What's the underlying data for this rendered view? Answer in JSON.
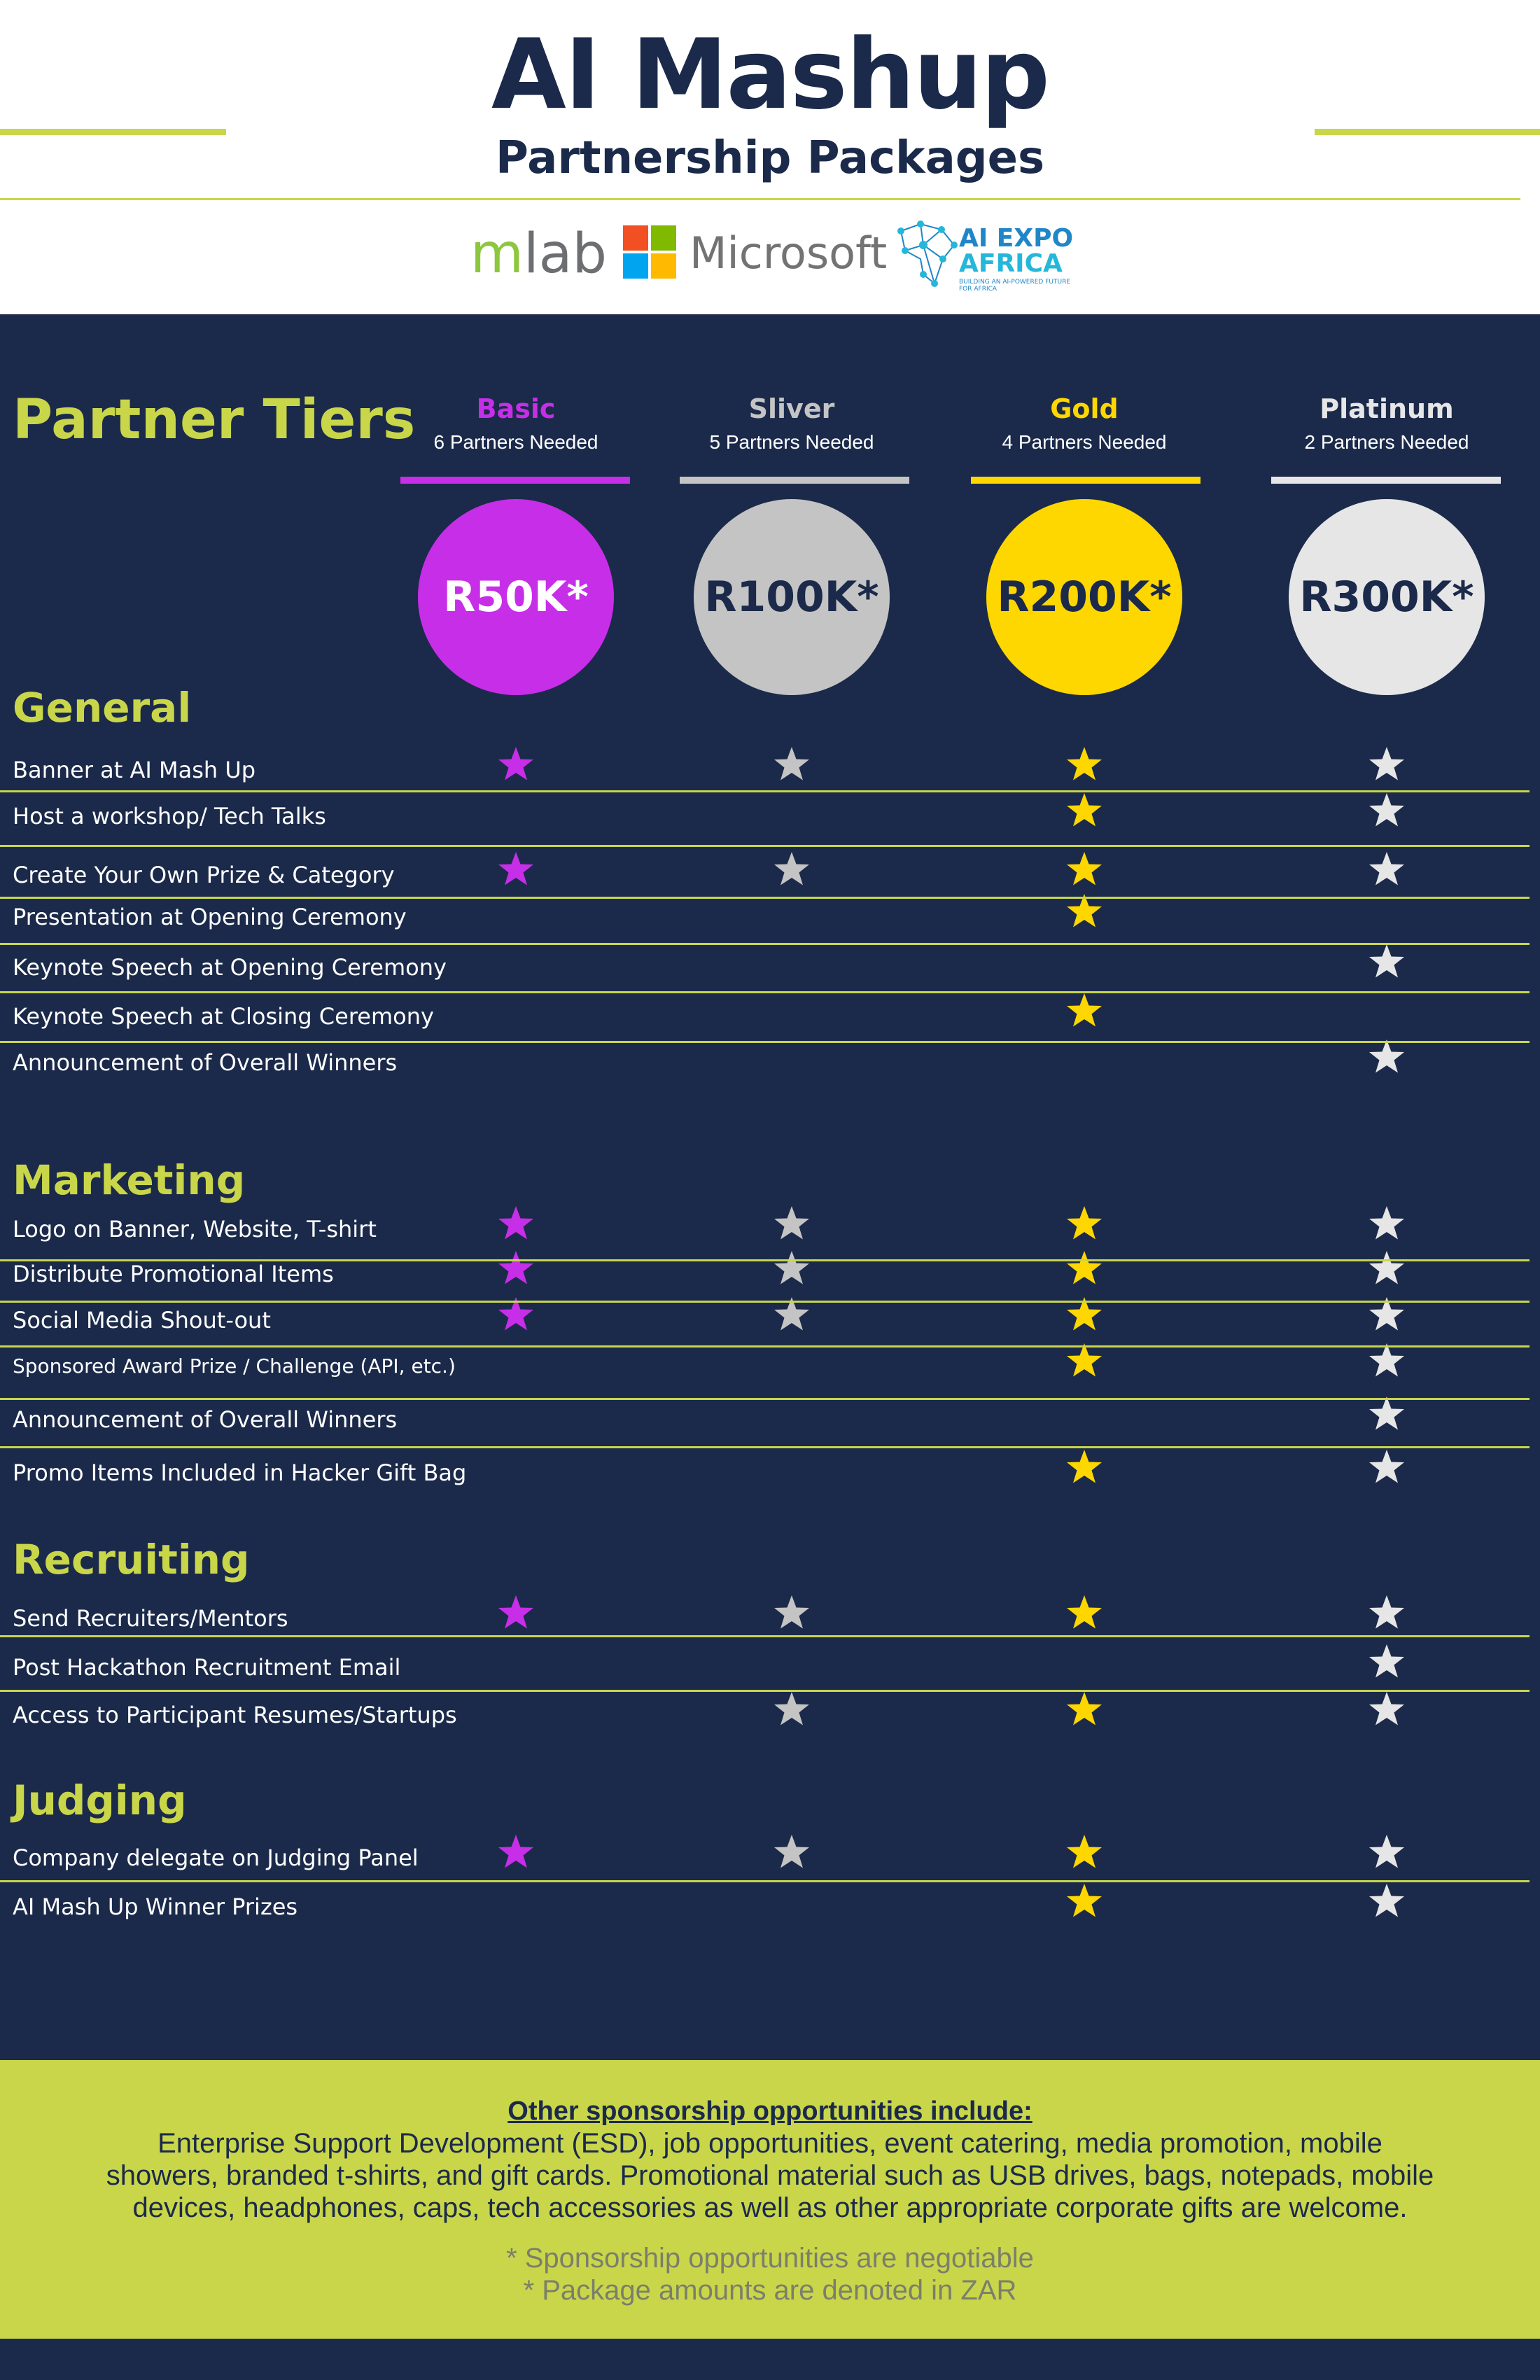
{
  "header": {
    "title": "AI Mashup",
    "subtitle": "Partnership Packages",
    "logos": {
      "mlab_m": "m",
      "mlab_rest": "lab",
      "microsoft": "Microsoft",
      "aiexpo_line1": "AI EXPO",
      "aiexpo_line2": "AFRICA",
      "aiexpo_tagline": "BUILDING AN AI-POWERED FUTURE FOR AFRICA",
      "microsoft_colors": [
        "#f25022",
        "#7fba00",
        "#00a4ef",
        "#ffb900"
      ]
    }
  },
  "colors": {
    "navy": "#1b2a4a",
    "lime": "#c9d64a",
    "basic": "#c72ee8",
    "silver": "#c4c4c4",
    "gold": "#ffd700",
    "platinum": "#e6e6e6"
  },
  "tiers_heading": "Partner Tiers",
  "tiers": [
    {
      "name": "Basic",
      "needed": "6 Partners Needed",
      "price": "R50K*",
      "color": "#c72ee8",
      "text_color": "#ffffff",
      "name_color": "#c72ee8"
    },
    {
      "name": "Sliver",
      "needed": "5 Partners Needed",
      "price": "R100K*",
      "color": "#c4c4c4",
      "text_color": "#1b2a4a",
      "name_color": "#c4c4c4"
    },
    {
      "name": "Gold",
      "needed": "4 Partners Needed",
      "price": "R200K*",
      "color": "#ffd700",
      "text_color": "#1b2a4a",
      "name_color": "#ffd700"
    },
    {
      "name": "Platinum",
      "needed": "2 Partners Needed",
      "price": "R300K*",
      "color": "#e6e6e6",
      "text_color": "#1b2a4a",
      "name_color": "#e6e6e6"
    }
  ],
  "sections": [
    {
      "title": "General",
      "rows": [
        {
          "label": "Banner at AI Mash Up",
          "stars": [
            true,
            true,
            true,
            true
          ]
        },
        {
          "label": "Host a workshop/ Tech Talks",
          "stars": [
            false,
            false,
            true,
            true
          ]
        },
        {
          "label": "Create Your Own Prize & Category",
          "stars": [
            true,
            true,
            true,
            true
          ]
        },
        {
          "label": "Presentation at Opening Ceremony",
          "stars": [
            false,
            false,
            true,
            false
          ]
        },
        {
          "label": "Keynote Speech at Opening Ceremony",
          "stars": [
            false,
            false,
            false,
            true
          ]
        },
        {
          "label": "Keynote Speech at Closing Ceremony",
          "stars": [
            false,
            false,
            true,
            false
          ]
        },
        {
          "label": "Announcement of Overall Winners",
          "stars": [
            false,
            false,
            false,
            true
          ]
        }
      ]
    },
    {
      "title": "Marketing",
      "rows": [
        {
          "label": "Logo on Banner, Website, T-shirt",
          "stars": [
            true,
            true,
            true,
            true
          ]
        },
        {
          "label": "Distribute Promotional Items",
          "stars": [
            true,
            true,
            true,
            true
          ]
        },
        {
          "label": "Social Media Shout-out",
          "stars": [
            true,
            true,
            true,
            true
          ]
        },
        {
          "label": "Sponsored Award Prize / Challenge (API, etc.)",
          "stars": [
            false,
            false,
            true,
            true
          ]
        },
        {
          "label": "Announcement of Overall Winners",
          "stars": [
            false,
            false,
            false,
            true
          ]
        },
        {
          "label": "Promo Items Included in Hacker Gift Bag",
          "stars": [
            false,
            false,
            true,
            true
          ]
        }
      ]
    },
    {
      "title": "Recruiting",
      "rows": [
        {
          "label": "Send Recruiters/Mentors",
          "stars": [
            true,
            true,
            true,
            true
          ]
        },
        {
          "label": "Post Hackathon Recruitment Email",
          "stars": [
            false,
            false,
            false,
            true
          ]
        },
        {
          "label": "Access to Participant Resumes/Startups",
          "stars": [
            false,
            true,
            true,
            true
          ]
        }
      ]
    },
    {
      "title": "Judging",
      "rows": [
        {
          "label": "Company delegate on Judging Panel",
          "stars": [
            true,
            true,
            true,
            true
          ]
        },
        {
          "label": "AI Mash Up Winner Prizes",
          "stars": [
            false,
            false,
            true,
            true
          ]
        }
      ]
    }
  ],
  "footer": {
    "heading": "Other sponsorship opportunities include:",
    "body": "Enterprise Support Development (ESD), job opportunities, event catering, media promotion, mobile showers, branded t-shirts, and gift cards. Promotional material such as USB drives, bags, notepads, mobile devices, headphones, caps, tech accessories as well as other appropriate corporate gifts are welcome.",
    "note1": "* Sponsorship opportunities are negotiable",
    "note2": "* Package amounts are denoted in ZAR"
  }
}
